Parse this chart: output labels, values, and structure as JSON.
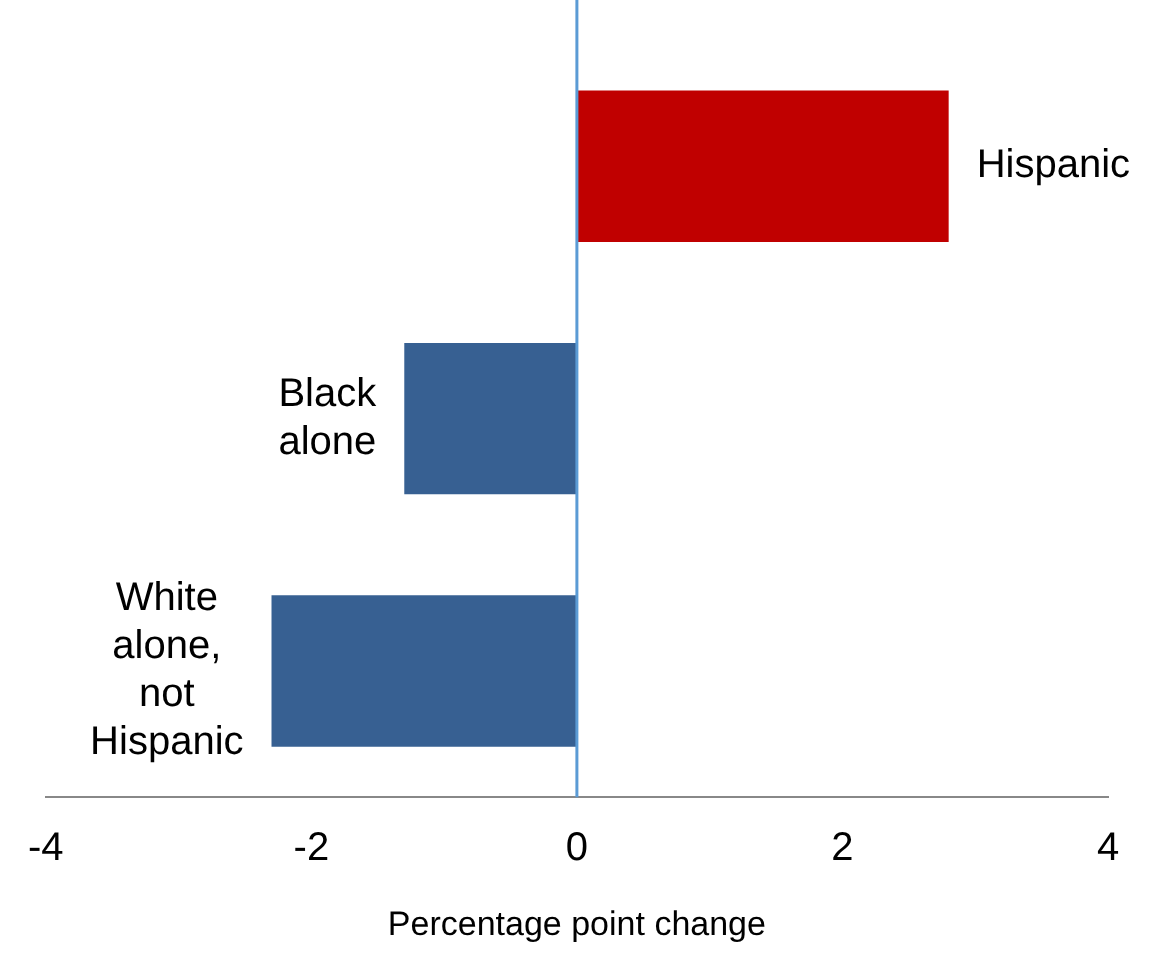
{
  "chart_data": {
    "type": "bar",
    "orientation": "horizontal",
    "categories": [
      "Hispanic",
      "Black alone",
      "White alone, not Hispanic"
    ],
    "values": [
      2.8,
      -1.3,
      -2.3
    ],
    "colors": [
      "#c00000",
      "#376092",
      "#376092"
    ],
    "xlim": [
      -4,
      4
    ],
    "xticks": [
      -4,
      -2,
      0,
      2,
      4
    ],
    "xlabel": "Percentage point change",
    "ref_lines": [
      {
        "axis": "x",
        "value": 0,
        "color": "#5b9bd5"
      }
    ],
    "grid": false,
    "legend": false,
    "tick_labels": "x"
  }
}
